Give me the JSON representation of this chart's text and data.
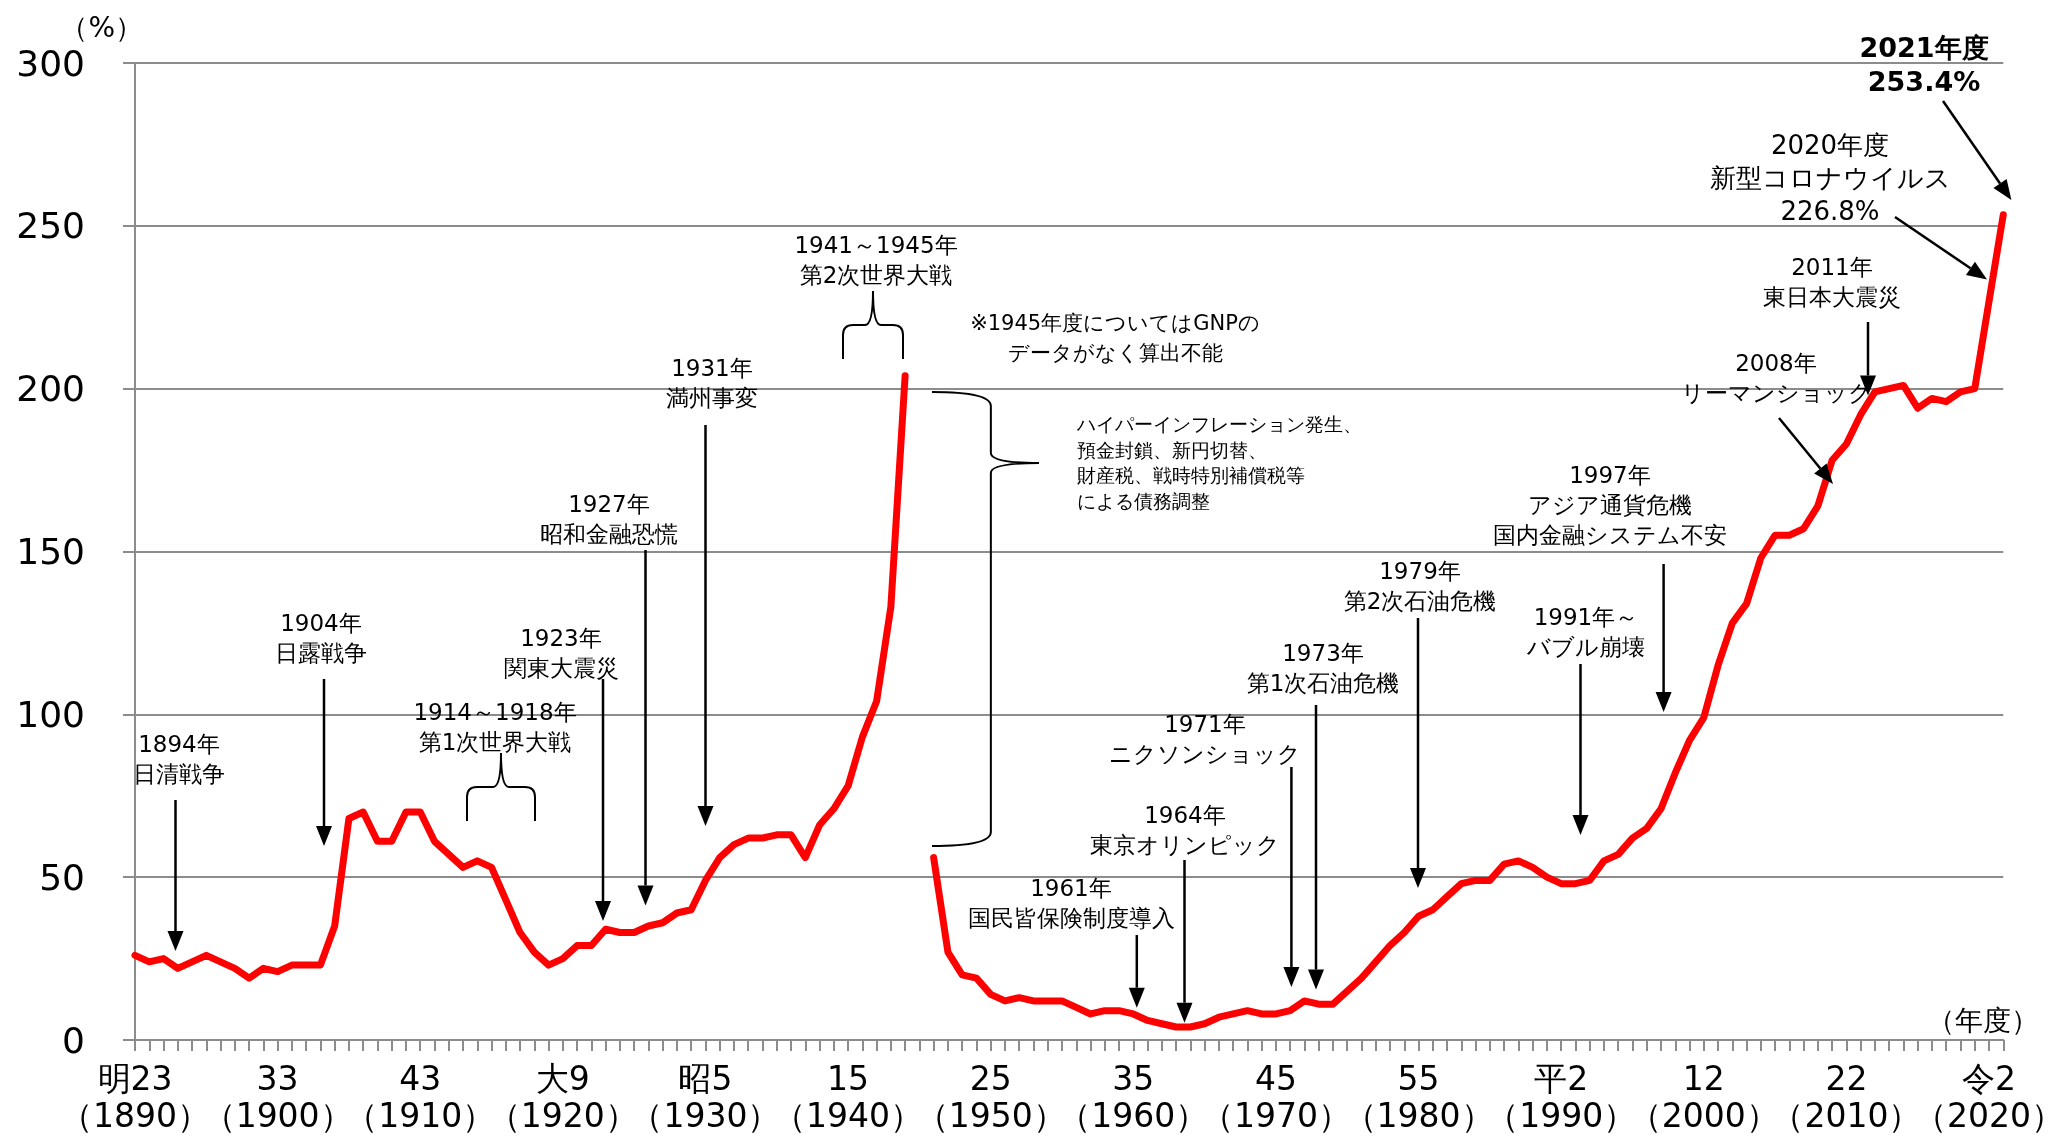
{
  "chart_data": {
    "type": "line",
    "xlabel": "（年度）",
    "ylabel": "（%）",
    "color": "#ff0000",
    "grid": "y",
    "ylim": [
      0,
      300
    ],
    "yticks": [
      0,
      50,
      100,
      150,
      200,
      250,
      300
    ],
    "categories": [
      "明23（1890）",
      null,
      null,
      null,
      null,
      null,
      null,
      null,
      null,
      null,
      "33（1900）",
      null,
      null,
      null,
      null,
      null,
      null,
      null,
      null,
      null,
      "43（1910）",
      null,
      null,
      null,
      null,
      null,
      null,
      null,
      null,
      null,
      "大9（1920）",
      null,
      null,
      null,
      null,
      null,
      null,
      null,
      null,
      null,
      "昭5（1930）",
      null,
      null,
      null,
      null,
      null,
      null,
      null,
      null,
      null,
      "15（1940）",
      null,
      null,
      null,
      null,
      null,
      null,
      null,
      null,
      null,
      "25（1950）",
      null,
      null,
      null,
      null,
      null,
      null,
      null,
      null,
      null,
      "35（1960）",
      null,
      null,
      null,
      null,
      null,
      null,
      null,
      null,
      null,
      "45（1970）",
      null,
      null,
      null,
      null,
      null,
      null,
      null,
      null,
      null,
      "55（1980）",
      null,
      null,
      null,
      null,
      null,
      null,
      null,
      null,
      null,
      "平2（1990）",
      null,
      null,
      null,
      null,
      null,
      null,
      null,
      null,
      null,
      "12（2000）",
      null,
      null,
      null,
      null,
      null,
      null,
      null,
      null,
      null,
      "22（2010）",
      null,
      null,
      null,
      null,
      null,
      null,
      null,
      null,
      null,
      "令2（2020）",
      null
    ],
    "values": [
      26,
      24,
      25,
      22,
      24,
      26,
      24,
      22,
      19,
      22,
      21,
      23,
      23,
      23,
      35,
      68,
      70,
      61,
      61,
      70,
      70,
      61,
      57,
      53,
      55,
      53,
      43,
      33,
      27,
      23,
      25,
      29,
      29,
      34,
      33,
      33,
      35,
      36,
      39,
      40,
      49,
      56,
      60,
      62,
      62,
      63,
      63,
      56,
      66,
      71,
      78,
      93,
      104,
      133,
      204,
      null,
      56,
      27,
      20,
      19,
      14,
      12,
      13,
      12,
      12,
      12,
      10,
      8,
      9,
      9,
      8,
      6,
      5,
      4,
      4,
      5,
      7,
      8,
      9,
      8,
      8,
      9,
      12,
      11,
      11,
      15,
      19,
      24,
      29,
      33,
      38,
      40,
      44,
      48,
      49,
      49,
      54,
      55,
      53,
      50,
      48,
      48,
      49,
      55,
      57,
      62,
      65,
      71,
      82,
      92,
      99,
      115,
      128,
      134,
      148,
      155,
      155,
      157,
      164,
      178,
      183,
      192,
      199,
      200,
      201,
      194,
      197,
      196,
      199,
      200,
      226.8,
      253.4
    ],
    "annotations": [
      "1894年日清戦争",
      "1904年日露戦争",
      "1914～1918年第1次世界大戦",
      "1923年関東大震災",
      "1927年昭和金融恐慌",
      "1931年満州事変",
      "1941～1945年第2次世界大戦",
      "※1945年度についてはGNPのデータがなく算出不能",
      "ハイパーインフレーション発生、預金封鎖、新円切替、財産税、戦時特別補償税等による債務調整",
      "1961年国民皆保険制度導入",
      "1964年東京オリンピック",
      "1971年ニクソンショック",
      "1973年第1次石油危機",
      "1979年第2次石油危機",
      "1991年～バブル崩壊",
      "1997年アジア通貨危機国内金融システム不安",
      "2008年リーマンショック",
      "2011年東日本大震災",
      "2020年度新型コロナウイルス226.8%",
      "2021年度253.4%"
    ]
  }
}
